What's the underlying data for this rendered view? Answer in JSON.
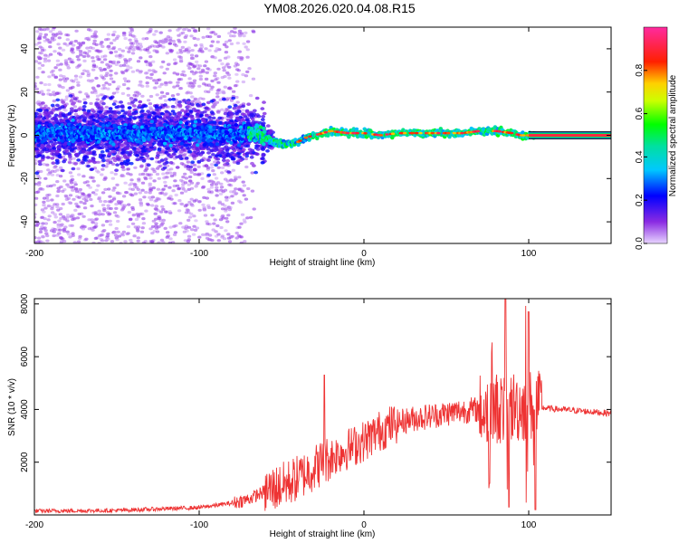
{
  "title": "YM08.2026.020.04.08.R15",
  "colors": {
    "snr_line": "#ee3333",
    "background": "#ffffff",
    "axis": "#000000"
  },
  "chart_data": [
    {
      "type": "heatmap",
      "name": "spectrogram",
      "xlabel": "Height of straight line (km)",
      "ylabel": "Frequency (Hz)",
      "xlim": [
        -200,
        150
      ],
      "ylim": [
        -50,
        50
      ],
      "xticks": [
        -200,
        -100,
        0,
        100
      ],
      "yticks": [
        -40,
        -20,
        0,
        20,
        40
      ],
      "xtick_labels": [
        "-200",
        "-100",
        "0",
        "100"
      ],
      "ytick_labels": [
        "-40",
        "-20",
        "0",
        "20",
        "40"
      ],
      "colorbar": {
        "label": "Normalized spectral amplitude",
        "range": [
          0.0,
          1.0
        ],
        "ticks": [
          0.0,
          0.2,
          0.4,
          0.6,
          0.8
        ],
        "tick_labels": [
          "0.0",
          "0.2",
          "0.4",
          "0.6",
          "0.8"
        ],
        "colormap": "rainbow (violet-blue-cyan-green-yellow-red-magenta)"
      },
      "dominant_frequency_trace": {
        "heights_km": [
          -200,
          -150,
          -100,
          -80,
          -70,
          -60,
          -55,
          -50,
          -45,
          -40,
          -35,
          -30,
          -25,
          -20,
          -10,
          0,
          10,
          20,
          40,
          60,
          70,
          80,
          90,
          95,
          100,
          110,
          150
        ],
        "frequency_hz": [
          1,
          1,
          1,
          0,
          2,
          -1,
          -3,
          -4,
          -4,
          -3,
          -1,
          0,
          1,
          2,
          1,
          1,
          0,
          1,
          1,
          1,
          2,
          2,
          1,
          0,
          0,
          0,
          0
        ]
      }
    },
    {
      "type": "line",
      "name": "snr",
      "xlabel": "Height of straight line (km)",
      "ylabel": "SNR (10 * v/v)",
      "xlim": [
        -200,
        150
      ],
      "ylim": [
        0,
        8200
      ],
      "xticks": [
        -200,
        -100,
        0,
        100
      ],
      "yticks": [
        2000,
        4000,
        6000,
        8000
      ],
      "xtick_labels": [
        "-200",
        "-100",
        "0",
        "100"
      ],
      "ytick_labels": [
        "2000",
        "4000",
        "6000",
        "8000"
      ],
      "series": [
        {
          "name": "SNR",
          "envelope": {
            "x": [
              -200,
              -150,
              -100,
              -80,
              -70,
              -60,
              -50,
              -40,
              -30,
              -20,
              -10,
              0,
              10,
              20,
              30,
              40,
              50,
              60,
              70,
              80,
              90,
              100,
              110,
              120,
              130,
              140,
              150
            ],
            "y": [
              150,
              170,
              280,
              450,
              600,
              900,
              1100,
              1400,
              1800,
              2200,
              2500,
              2800,
              3200,
              3500,
              3650,
              3750,
              3850,
              3950,
              4000,
              4050,
              4100,
              4150,
              4050,
              4000,
              3950,
              3900,
              3850
            ]
          },
          "notable_peaks": {
            "x": [
              -24,
              76,
              86,
              100
            ],
            "y": [
              5300,
              8200,
              8200,
              7700
            ]
          },
          "notable_dips": {
            "x": [
              76,
              88,
              104
            ],
            "y": [
              1200,
              300,
              200
            ]
          }
        }
      ]
    }
  ]
}
